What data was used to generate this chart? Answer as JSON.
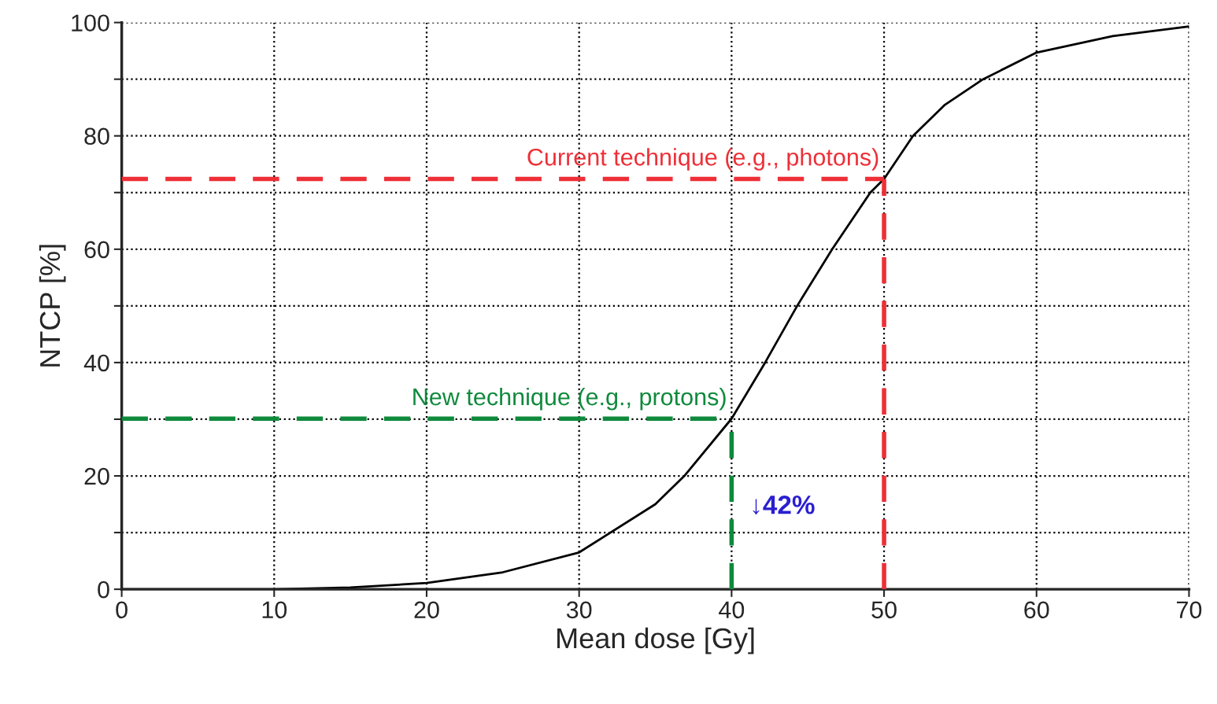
{
  "chart_data": {
    "type": "line",
    "xlabel": "Mean dose [Gy]",
    "ylabel": "NTCP [%]",
    "x": [
      0,
      10,
      15,
      20,
      25,
      30,
      35,
      36.9,
      40,
      42.2,
      44.3,
      46.6,
      49.1,
      50,
      51.9,
      54,
      56.5,
      60,
      65,
      70
    ],
    "series": [
      {
        "color": "#000000",
        "values": [
          0,
          0,
          0.3,
          1.1,
          3,
          6.5,
          15,
          20,
          30.1,
          40,
          50,
          60,
          70,
          72.4,
          80,
          85.5,
          90,
          94.7,
          97.6,
          99.3
        ]
      }
    ],
    "xlim": [
      0,
      70
    ],
    "xticks": [
      0,
      10,
      20,
      30,
      40,
      50,
      60,
      70
    ],
    "ylim": [
      0,
      100
    ],
    "yticks": [
      0,
      {
        "value": 10,
        "label": null
      },
      20,
      {
        "value": 30,
        "label": null
      },
      40,
      {
        "value": 50,
        "label": null
      },
      60,
      {
        "value": 70,
        "label": null
      },
      80,
      {
        "value": 90,
        "label": null
      },
      100
    ],
    "grid": true,
    "marker": "none",
    "line_style": "solid",
    "ref_lines": [
      {
        "axis": "y",
        "value": 72.4,
        "label": "Current technique (e.g., photons)",
        "color": "#ee2f37",
        "line_style": "dashed"
      },
      {
        "axis": "x",
        "value": 50,
        "color": "#ee2f37",
        "line_style": "dashed"
      },
      {
        "axis": "y",
        "value": 30.1,
        "label": "New technique (e.g., protons)",
        "color": "#0f8a3c",
        "line_style": "dashed"
      },
      {
        "axis": "x",
        "value": 40,
        "color": "#0f8a3c",
        "line_style": "dashed"
      }
    ],
    "annotations": [
      "↓42%"
    ]
  }
}
